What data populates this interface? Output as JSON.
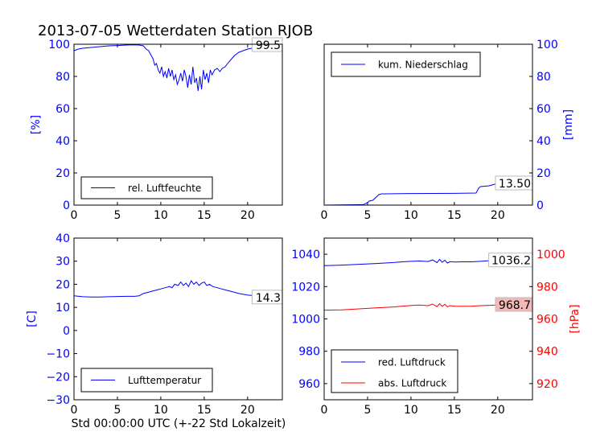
{
  "chart_data": [
    {
      "type": "line",
      "title": "2013-07-05 Wetterdaten Station RJOB",
      "ylabel": "[%]",
      "xlim": [
        0,
        24
      ],
      "ylim": [
        0,
        100
      ],
      "xticks": [
        0,
        5,
        10,
        15,
        20
      ],
      "yticks": [
        0,
        20,
        40,
        60,
        80,
        100
      ],
      "color": "#0000ff",
      "last_value_label": "99.5",
      "legend": "rel. Luftfeuchte",
      "legend_position": "lower left",
      "series": [
        {
          "name": "rel. Luftfeuchte",
          "x": [
            0,
            0.5,
            1,
            2,
            3,
            4,
            5,
            6,
            7,
            7.5,
            8,
            8.3,
            8.6,
            8.9,
            9.1,
            9.3,
            9.5,
            9.7,
            9.9,
            10.1,
            10.3,
            10.5,
            10.7,
            10.9,
            11.1,
            11.3,
            11.5,
            11.7,
            11.9,
            12.1,
            12.3,
            12.5,
            12.7,
            12.9,
            13.1,
            13.3,
            13.5,
            13.7,
            13.9,
            14.1,
            14.3,
            14.5,
            14.7,
            14.9,
            15.1,
            15.3,
            15.5,
            15.7,
            15.9,
            16.2,
            16.5,
            16.8,
            17.1,
            17.4,
            17.7,
            18,
            18.5,
            19,
            20,
            21,
            22,
            23,
            24
          ],
          "y": [
            96,
            97,
            97.5,
            98,
            98.5,
            99,
            99.2,
            99.5,
            99.6,
            99.5,
            99,
            97,
            96,
            93,
            91,
            87,
            88,
            84,
            82,
            86,
            80,
            83,
            79,
            85,
            80,
            84,
            78,
            81,
            75,
            78,
            82,
            77,
            84,
            80,
            73,
            81,
            75,
            86,
            76,
            79,
            71,
            80,
            72,
            84,
            78,
            82,
            76,
            84,
            81,
            84,
            85,
            83,
            85,
            86,
            88,
            90,
            93,
            95,
            97,
            98,
            99,
            99.5,
            99.5
          ]
        }
      ]
    },
    {
      "type": "line",
      "ylabel": "[mm]",
      "xlim": [
        0,
        24
      ],
      "ylim": [
        0,
        100
      ],
      "xticks": [
        0,
        5,
        10,
        15,
        20
      ],
      "yticks": [
        0,
        20,
        40,
        60,
        80,
        100
      ],
      "yaxis_side": "right",
      "color": "#0000ff",
      "last_value_label": "13.50",
      "legend": "kum. Niederschlag",
      "legend_position": "upper left",
      "series": [
        {
          "name": "kum. Niederschlag",
          "x": [
            0,
            4.5,
            5.0,
            5.2,
            5.6,
            6.0,
            6.3,
            6.6,
            7,
            10,
            15,
            17.5,
            17.8,
            18,
            19,
            20,
            24
          ],
          "y": [
            0,
            0.3,
            1.5,
            2.5,
            3,
            5,
            6.5,
            7,
            7,
            7.2,
            7.3,
            7.5,
            10.5,
            11.5,
            12,
            13.5,
            13.5
          ]
        }
      ]
    },
    {
      "type": "line",
      "ylabel": "[C]",
      "xlabel": "Std 00:00:00 UTC (+-22 Std Lokalzeit)",
      "xlim": [
        0,
        24
      ],
      "ylim": [
        -30,
        40
      ],
      "xticks": [
        0,
        5,
        10,
        15,
        20
      ],
      "yticks": [
        -30,
        -20,
        -10,
        0,
        10,
        20,
        30,
        40
      ],
      "color": "#0000ff",
      "last_value_label": "14.3",
      "legend": "Lufttemperatur",
      "legend_position": "lower left",
      "series": [
        {
          "name": "Lufttemperatur",
          "x": [
            0,
            1,
            2,
            3,
            4,
            5,
            6,
            7,
            7.5,
            8,
            8.5,
            9,
            9.5,
            10,
            10.5,
            11,
            11.3,
            11.6,
            12,
            12.3,
            12.6,
            12.9,
            13.2,
            13.5,
            13.8,
            14.1,
            14.4,
            14.7,
            15,
            15.3,
            15.6,
            16,
            16.5,
            17,
            17.5,
            18,
            19,
            20,
            21,
            22,
            23,
            24
          ],
          "y": [
            15,
            14.6,
            14.5,
            14.5,
            14.6,
            14.7,
            14.8,
            14.8,
            15,
            16,
            16.5,
            17,
            17.5,
            18,
            18.5,
            19,
            18.5,
            20,
            19.5,
            21,
            19.5,
            20.5,
            19,
            21.5,
            20,
            21,
            19.5,
            20.5,
            21,
            19.5,
            20,
            19,
            18.5,
            18,
            17.5,
            17,
            16,
            15.3,
            15,
            14.6,
            14.4,
            14.3
          ]
        }
      ]
    },
    {
      "type": "line",
      "xlim": [
        0,
        24
      ],
      "xticks": [
        0,
        5,
        10,
        15,
        20
      ],
      "left_axis": {
        "ylim": [
          950,
          1050
        ],
        "yticks": [
          960,
          980,
          1000,
          1020,
          1040
        ],
        "color": "#0000ff"
      },
      "right_axis": {
        "ylabel": "[hPa]",
        "ylim": [
          910,
          1010
        ],
        "yticks": [
          920,
          940,
          960,
          980,
          1000
        ],
        "color": "#ff0000"
      },
      "legend_position": "lower left",
      "series": [
        {
          "name": "red. Luftdruck",
          "axis": "left",
          "color": "#0000ff",
          "last_value_label": "1036.2",
          "x": [
            0,
            2,
            4,
            6,
            8,
            9,
            10,
            11,
            12,
            12.5,
            13,
            13.3,
            13.6,
            13.9,
            14.2,
            14.5,
            15,
            16,
            17,
            18,
            19,
            20,
            21,
            22,
            23,
            24
          ],
          "y": [
            1033,
            1033.3,
            1033.8,
            1034.3,
            1034.9,
            1035.3,
            1035.6,
            1035.8,
            1035.5,
            1036.5,
            1034.8,
            1036.8,
            1035,
            1036.3,
            1034.6,
            1035.4,
            1035.2,
            1035.3,
            1035.3,
            1035.6,
            1036,
            1036.5,
            1036.6,
            1036.5,
            1036.3,
            1036.2
          ]
        },
        {
          "name": "abs. Luftdruck",
          "axis": "right",
          "color": "#ff0000",
          "last_value_label": "968.7",
          "x": [
            0,
            2,
            4,
            6,
            8,
            9,
            10,
            11,
            12,
            12.5,
            13,
            13.3,
            13.6,
            13.9,
            14.2,
            14.5,
            15,
            16,
            17,
            18,
            19,
            20,
            21,
            22,
            23,
            24
          ],
          "y": [
            965.4,
            965.6,
            966.2,
            966.8,
            967.4,
            967.9,
            968.3,
            968.6,
            968.2,
            969.2,
            967.6,
            969.4,
            967.8,
            969,
            967.5,
            968.2,
            967.9,
            967.8,
            967.9,
            968.2,
            968.4,
            968.6,
            968.8,
            968.8,
            968.7,
            968.7
          ]
        }
      ]
    }
  ]
}
